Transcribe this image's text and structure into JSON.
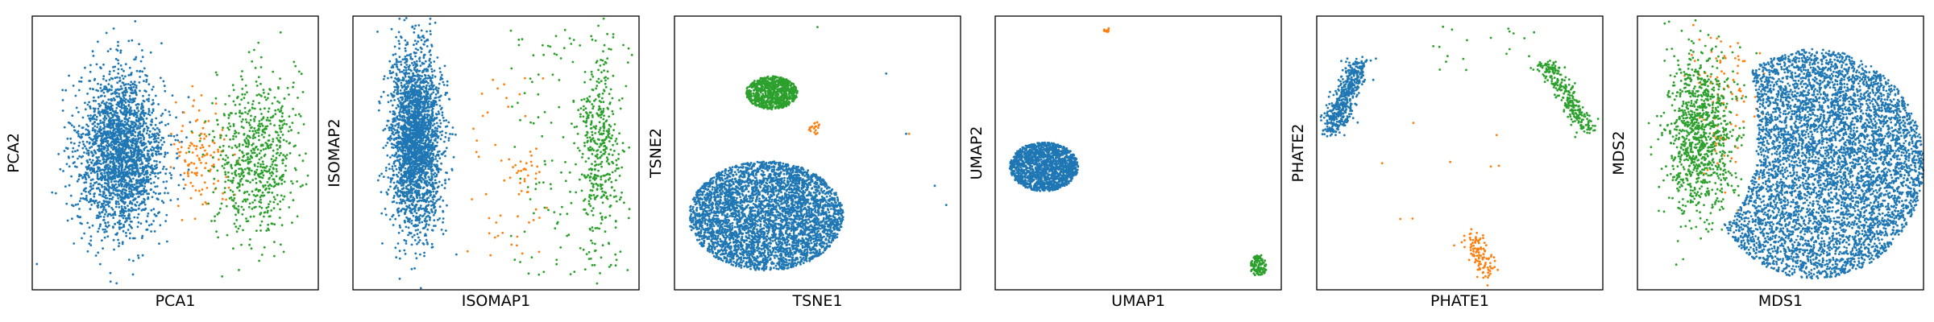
{
  "chart_data": [
    {
      "type": "scatter",
      "xlabel": "PCA1",
      "ylabel": "PCA2",
      "ticks": "none",
      "legend": "none",
      "xlim": [
        0,
        100
      ],
      "ylim": [
        0,
        100
      ],
      "series": [
        {
          "color": "#1f77b4",
          "clusters": [
            {
              "shape": "gaussian",
              "cx": 31,
              "cy": 50,
              "sx": 7.5,
              "sy": 14.5,
              "n": 2400
            }
          ]
        },
        {
          "color": "#ff7f0e",
          "clusters": [
            {
              "shape": "gaussian",
              "cx": 59,
              "cy": 50,
              "sx": 5,
              "sy": 10,
              "n": 120
            }
          ]
        },
        {
          "color": "#2ca02c",
          "clusters": [
            {
              "shape": "gaussian",
              "cx": 78,
              "cy": 49,
              "sx": 7,
              "sy": 15,
              "n": 700
            }
          ]
        }
      ]
    },
    {
      "type": "scatter",
      "xlabel": "ISOMAP1",
      "ylabel": "ISOMAP2",
      "ticks": "none",
      "legend": "none",
      "xlim": [
        0,
        100
      ],
      "ylim": [
        0,
        100
      ],
      "series": [
        {
          "color": "#1f77b4",
          "clusters": [
            {
              "shape": "gaussian",
              "cx": 22,
              "cy": 55,
              "sx": 4.5,
              "sy": 16,
              "n": 2600
            }
          ]
        },
        {
          "color": "#ff7f0e",
          "clusters": [
            {
              "shape": "uniform",
              "x0": 40,
              "x1": 68,
              "y0": 10,
              "y1": 80,
              "n": 45
            },
            {
              "shape": "gaussian",
              "cx": 59,
              "cy": 42,
              "sx": 3,
              "sy": 6,
              "n": 25
            }
          ]
        },
        {
          "color": "#2ca02c",
          "clusters": [
            {
              "shape": "gaussian",
              "cx": 86,
              "cy": 52,
              "sx": 3.5,
              "sy": 17,
              "n": 380
            },
            {
              "shape": "uniform",
              "x0": 55,
              "x1": 98,
              "y0": 5,
              "y1": 95,
              "n": 150
            }
          ]
        }
      ]
    },
    {
      "type": "scatter",
      "xlabel": "TSNE1",
      "ylabel": "TSNE2",
      "ticks": "none",
      "legend": "none",
      "xlim": [
        0,
        100
      ],
      "ylim": [
        0,
        100
      ],
      "series": [
        {
          "color": "#1f77b4",
          "clusters": [
            {
              "shape": "disc",
              "cx": 32,
              "cy": 27,
              "rx": 27,
              "ry": 20,
              "n": 4000
            },
            {
              "shape": "points",
              "pts": [
                [
                  74,
                  79
                ],
                [
                  81,
                  57
                ],
                [
                  91,
                  38
                ],
                [
                  95,
                  31
                ]
              ]
            }
          ]
        },
        {
          "color": "#ff7f0e",
          "clusters": [
            {
              "shape": "disc",
              "cx": 49,
              "cy": 59,
              "rx": 2,
              "ry": 2.5,
              "n": 20
            },
            {
              "shape": "points",
              "pts": [
                [
                  82,
                  57
                ]
              ]
            }
          ]
        },
        {
          "color": "#2ca02c",
          "clusters": [
            {
              "shape": "disc",
              "cx": 34,
              "cy": 72,
              "rx": 9,
              "ry": 6,
              "n": 800
            },
            {
              "shape": "points",
              "pts": [
                [
                  50,
                  96
                ]
              ]
            }
          ]
        }
      ]
    },
    {
      "type": "scatter",
      "xlabel": "UMAP1",
      "ylabel": "UMAP2",
      "ticks": "none",
      "legend": "none",
      "xlim": [
        0,
        100
      ],
      "ylim": [
        0,
        100
      ],
      "series": [
        {
          "color": "#1f77b4",
          "clusters": [
            {
              "shape": "disc",
              "cx": 17,
              "cy": 45,
              "rx": 12,
              "ry": 9,
              "n": 1600
            }
          ]
        },
        {
          "color": "#ff7f0e",
          "clusters": [
            {
              "shape": "disc",
              "cx": 39,
              "cy": 95,
              "rx": 1,
              "ry": 1,
              "n": 12
            }
          ]
        },
        {
          "color": "#2ca02c",
          "clusters": [
            {
              "shape": "disc",
              "cx": 92,
              "cy": 9,
              "rx": 3,
              "ry": 4,
              "n": 120
            }
          ]
        }
      ]
    },
    {
      "type": "scatter",
      "xlabel": "PHATE1",
      "ylabel": "PHATE2",
      "ticks": "none",
      "legend": "none",
      "xlim": [
        0,
        100
      ],
      "ylim": [
        0,
        100
      ],
      "series": [
        {
          "color": "#1f77b4",
          "clusters": [
            {
              "shape": "line",
              "x0": 5,
              "y0": 58,
              "x1": 15,
              "y1": 83,
              "w": 2.2,
              "n": 500
            }
          ]
        },
        {
          "color": "#ff7f0e",
          "clusters": [
            {
              "shape": "line",
              "x0": 54,
              "y0": 20,
              "x1": 60,
              "y1": 5,
              "w": 2.2,
              "n": 110
            },
            {
              "shape": "uniform",
              "x0": 20,
              "x1": 65,
              "y0": 25,
              "y1": 75,
              "n": 8
            }
          ]
        },
        {
          "color": "#2ca02c",
          "clusters": [
            {
              "shape": "line",
              "x0": 80,
              "y0": 83,
              "x1": 95,
              "y1": 58,
              "w": 2,
              "n": 280
            },
            {
              "shape": "uniform",
              "x0": 40,
              "x1": 80,
              "y0": 80,
              "y1": 98,
              "n": 20
            }
          ]
        }
      ]
    },
    {
      "type": "scatter",
      "xlabel": "MDS1",
      "ylabel": "MDS2",
      "ticks": "none",
      "legend": "none",
      "xlim": [
        0,
        100
      ],
      "ylim": [
        0,
        100
      ],
      "series": [
        {
          "color": "#ff7f0e",
          "clusters": [
            {
              "shape": "gaussian",
              "cx": 30,
              "cy": 68,
              "sx": 7,
              "sy": 14,
              "n": 100
            }
          ]
        },
        {
          "color": "#2ca02c",
          "clusters": [
            {
              "shape": "gaussian",
              "cx": 22,
              "cy": 57,
              "sx": 6,
              "sy": 15,
              "n": 1000
            }
          ]
        },
        {
          "color": "#1f77b4",
          "clusters": [
            {
              "shape": "disc",
              "cx": 62,
              "cy": 46,
              "rx": 38,
              "ry": 42,
              "n": 5500,
              "excl": {
                "cx": 28,
                "cy": 60,
                "rx": 14,
                "ry": 36
              }
            }
          ]
        }
      ]
    }
  ]
}
